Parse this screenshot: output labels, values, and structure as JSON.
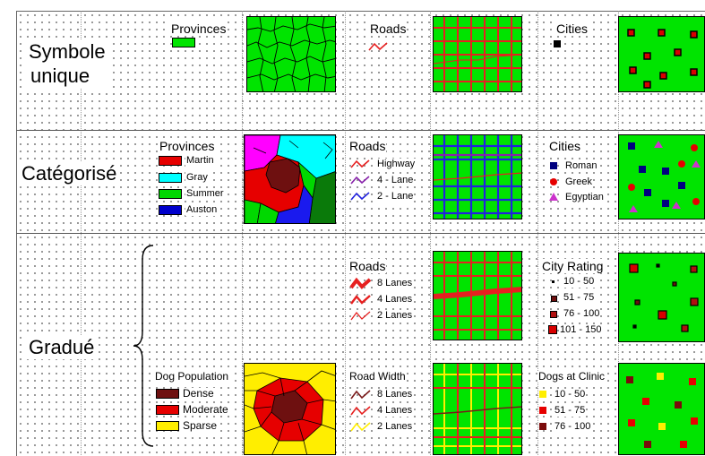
{
  "rows": [
    {
      "label_line1": "Symbole",
      "label_line2": "unique"
    },
    {
      "label_line1": "Catégorisé"
    },
    {
      "label_line1": "Gradué"
    }
  ],
  "simple": {
    "provinces": {
      "title": "Provinces"
    },
    "roads": {
      "title": "Roads"
    },
    "cities": {
      "title": "Cities"
    }
  },
  "categorized": {
    "provinces": {
      "title": "Provinces",
      "items": [
        {
          "label": "Martin",
          "color": "#e60000"
        },
        {
          "label": "Gray",
          "color": "#00ffff"
        },
        {
          "label": "Summer",
          "color": "#00d800"
        },
        {
          "label": "Auston",
          "color": "#0000cc"
        }
      ]
    },
    "roads": {
      "title": "Roads",
      "items": [
        {
          "label": "Highway",
          "color": "#e62020"
        },
        {
          "label": "4 - Lane",
          "color": "#8822aa"
        },
        {
          "label": "2 - Lane",
          "color": "#2222dd"
        }
      ]
    },
    "cities": {
      "title": "Cities",
      "items": [
        {
          "label": "Roman",
          "symbol": "square",
          "color": "#000080"
        },
        {
          "label": "Greek",
          "symbol": "circle",
          "color": "#e60000"
        },
        {
          "label": "Egyptian",
          "symbol": "triangle",
          "color": "#cc33cc"
        }
      ]
    }
  },
  "graduated_a": {
    "roads": {
      "title": "Roads",
      "items": [
        {
          "label": "8 Lanes"
        },
        {
          "label": "4 Lanes"
        },
        {
          "label": "2 Lanes"
        }
      ]
    },
    "cities": {
      "title": "City Rating",
      "items": [
        {
          "label": "10 -  50"
        },
        {
          "label": "51 -  75"
        },
        {
          "label": "76 - 100"
        },
        {
          "label": "101 - 150"
        }
      ]
    }
  },
  "graduated_b": {
    "provinces": {
      "title": "Dog Population",
      "items": [
        {
          "label": "Dense",
          "color": "#6e1010"
        },
        {
          "label": "Moderate",
          "color": "#e60000"
        },
        {
          "label": "Sparse",
          "color": "#ffee00"
        }
      ]
    },
    "roads": {
      "title": "Road Width",
      "items": [
        {
          "label": "8 Lanes",
          "color": "#7a1a1a"
        },
        {
          "label": "4 Lanes",
          "color": "#e62020"
        },
        {
          "label": "2 Lanes",
          "color": "#ffee00"
        }
      ]
    },
    "cities": {
      "title": "Dogs at Clinic",
      "items": [
        {
          "label": "10 -  50",
          "color": "#ffee00"
        },
        {
          "label": "51 -  75",
          "color": "#e60000"
        },
        {
          "label": "76 - 100",
          "color": "#7a0a0a"
        }
      ]
    }
  },
  "colors": {
    "map_green": "#00e400",
    "road_red": "#e62020"
  }
}
